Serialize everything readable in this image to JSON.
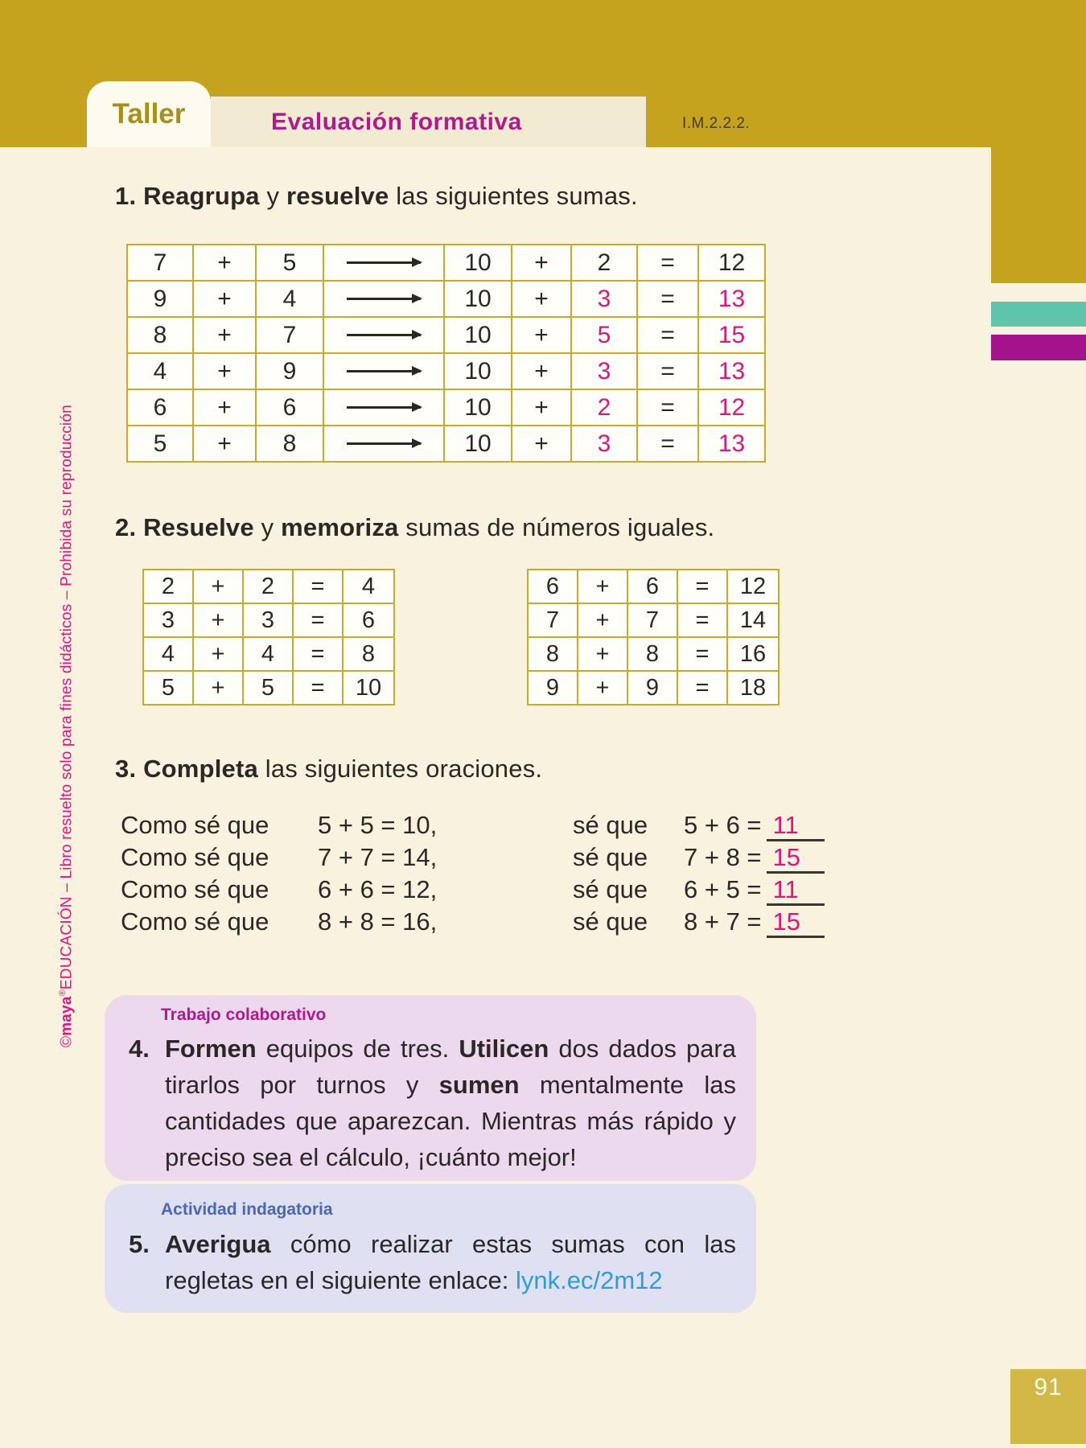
{
  "page": {
    "number": "91"
  },
  "header": {
    "tab": "Taller",
    "strip": "Evaluación formativa",
    "code": "I.M.2.2.2.",
    "gold": "#c6a31e",
    "teal": "#5fc4ac",
    "magenta": "#a5138c"
  },
  "sidebar": {
    "parts": [
      {
        "t": "©"
      },
      {
        "t": "maya",
        "b": true
      },
      {
        "t": "®",
        "sup": true
      },
      {
        "t": "EDUCACIÓN – Libro resuelto solo para fines didácticos – Prohibida su reproducción"
      }
    ]
  },
  "colors": {
    "answer_pink": "#e2147c",
    "link_blue": "#2b9ed9",
    "table_border": "#cbaa28"
  },
  "symbols": {
    "plus": "+",
    "equals": "=",
    "ten": "10"
  },
  "ex1": {
    "heading": [
      {
        "t": "1. Reagrupa",
        "b": true
      },
      {
        "t": " y ",
        "b": false
      },
      {
        "t": "resuelve",
        "b": true
      },
      {
        "t": " las siguientes sumas.",
        "b": false
      }
    ],
    "rows": [
      {
        "a": "7",
        "b": "5",
        "c": "2",
        "sum": "12",
        "pink": false
      },
      {
        "a": "9",
        "b": "4",
        "c": "3",
        "sum": "13",
        "pink": true
      },
      {
        "a": "8",
        "b": "7",
        "c": "5",
        "sum": "15",
        "pink": true
      },
      {
        "a": "4",
        "b": "9",
        "c": "3",
        "sum": "13",
        "pink": true
      },
      {
        "a": "6",
        "b": "6",
        "c": "2",
        "sum": "12",
        "pink": true
      },
      {
        "a": "5",
        "b": "8",
        "c": "3",
        "sum": "13",
        "pink": true
      }
    ]
  },
  "ex2": {
    "heading": [
      {
        "t": "2. Resuelve",
        "b": true
      },
      {
        "t": " y ",
        "b": false
      },
      {
        "t": "memoriza",
        "b": true
      },
      {
        "t": " sumas de números iguales.",
        "b": false
      }
    ],
    "left": [
      {
        "a": "2",
        "b": "2",
        "sum": "4"
      },
      {
        "a": "3",
        "b": "3",
        "sum": "6"
      },
      {
        "a": "4",
        "b": "4",
        "sum": "8"
      },
      {
        "a": "5",
        "b": "5",
        "sum": "10"
      }
    ],
    "right": [
      {
        "a": "6",
        "b": "6",
        "sum": "12"
      },
      {
        "a": "7",
        "b": "7",
        "sum": "14"
      },
      {
        "a": "8",
        "b": "8",
        "sum": "16"
      },
      {
        "a": "9",
        "b": "9",
        "sum": "18"
      }
    ]
  },
  "ex3": {
    "heading": [
      {
        "t": "3. Completa",
        "b": true
      },
      {
        "t": " las siguientes oraciones.",
        "b": false
      }
    ],
    "lines": [
      {
        "como": "Como sé que",
        "fact": "5 + 5  = 10,",
        "se": "sé que",
        "expr": "5 + 6  =",
        "ans": "11"
      },
      {
        "como": "Como sé que",
        "fact": "7 + 7  = 14,",
        "se": "sé que",
        "expr": "7 + 8  =",
        "ans": "15"
      },
      {
        "como": "Como sé que",
        "fact": "6 + 6  = 12,",
        "se": "sé que",
        "expr": "6 + 5  =",
        "ans": "11"
      },
      {
        "como": "Como sé que",
        "fact": "8 + 8  = 16,",
        "se": "sé que",
        "expr": "8 + 7  =",
        "ans": "15"
      }
    ]
  },
  "ex4": {
    "tag": "Trabajo colaborativo",
    "number": "4.",
    "body": [
      {
        "t": "Formen",
        "b": true
      },
      {
        "t": " equipos de tres. ",
        "b": false
      },
      {
        "t": "Utilicen",
        "b": true
      },
      {
        "t": " dos dados para tirarlos por turnos y ",
        "b": false
      },
      {
        "t": "sumen",
        "b": true
      },
      {
        "t": " mentalmente las cantidades que aparezcan. Mientras más rápido y preciso sea el cálculo, ¡cuánto mejor!",
        "b": false
      }
    ]
  },
  "ex5": {
    "tag": "Actividad indagatoria",
    "number": "5.",
    "body": [
      {
        "t": "Averigua",
        "b": true
      },
      {
        "t": " cómo realizar estas sumas con las regletas en el siguiente enlace: ",
        "b": false
      },
      {
        "t": "lynk.ec/2m12",
        "link": true
      }
    ]
  }
}
